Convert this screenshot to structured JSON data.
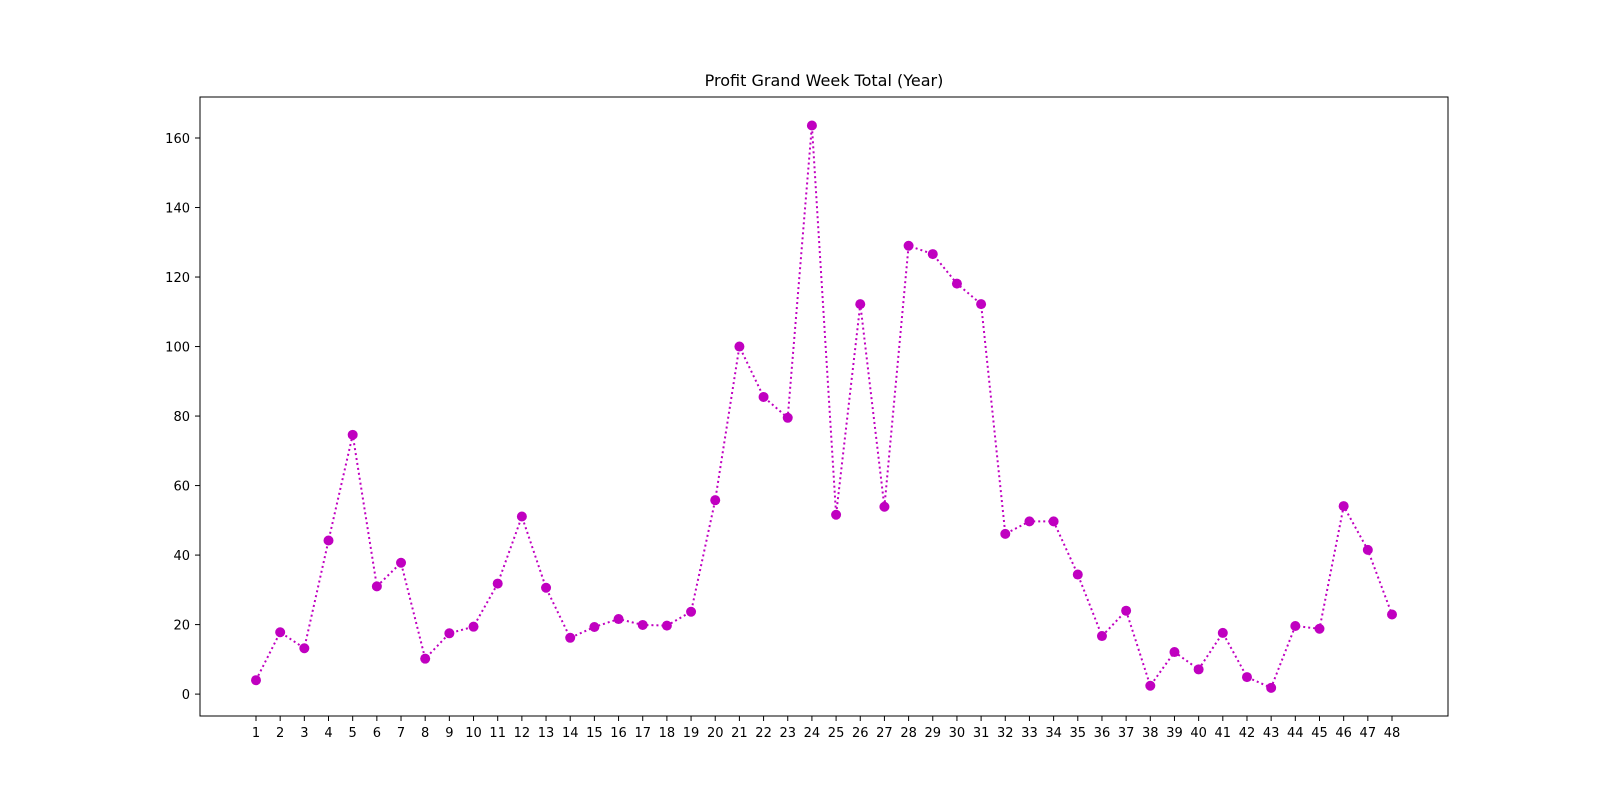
{
  "chart_data": {
    "type": "line",
    "title": "Profit Grand Week Total (Year)",
    "xlabel": "",
    "ylabel": "",
    "x": [
      1,
      2,
      3,
      4,
      5,
      6,
      7,
      8,
      9,
      10,
      11,
      12,
      13,
      14,
      15,
      16,
      17,
      18,
      19,
      20,
      21,
      22,
      23,
      24,
      25,
      26,
      27,
      28,
      29,
      30,
      31,
      32,
      33,
      34,
      35,
      36,
      37,
      38,
      39,
      40,
      41,
      42,
      43,
      44,
      45,
      46,
      47,
      48
    ],
    "series": [
      {
        "values": [
          4.0,
          17.8,
          13.2,
          44.2,
          74.6,
          31.0,
          37.8,
          10.2,
          17.5,
          19.4,
          31.8,
          51.1,
          30.6,
          16.2,
          19.3,
          21.6,
          19.9,
          19.7,
          23.7,
          55.8,
          100.0,
          85.5,
          79.5,
          163.6,
          51.6,
          112.2,
          53.9,
          129.0,
          126.6,
          118.1,
          112.2,
          46.1,
          49.7,
          49.7,
          34.4,
          16.7,
          24.0,
          2.4,
          12.1,
          7.1,
          17.6,
          4.9,
          1.8,
          19.6,
          18.8,
          54.1,
          41.5,
          22.9
        ],
        "color": "#c000c0",
        "line_style": "dotted",
        "marker": "circle"
      }
    ],
    "ylim": [
      -6.3,
      171.8
    ],
    "yticks": [
      0,
      20,
      40,
      60,
      80,
      100,
      120,
      140,
      160
    ],
    "grid": false,
    "legend": "none"
  }
}
